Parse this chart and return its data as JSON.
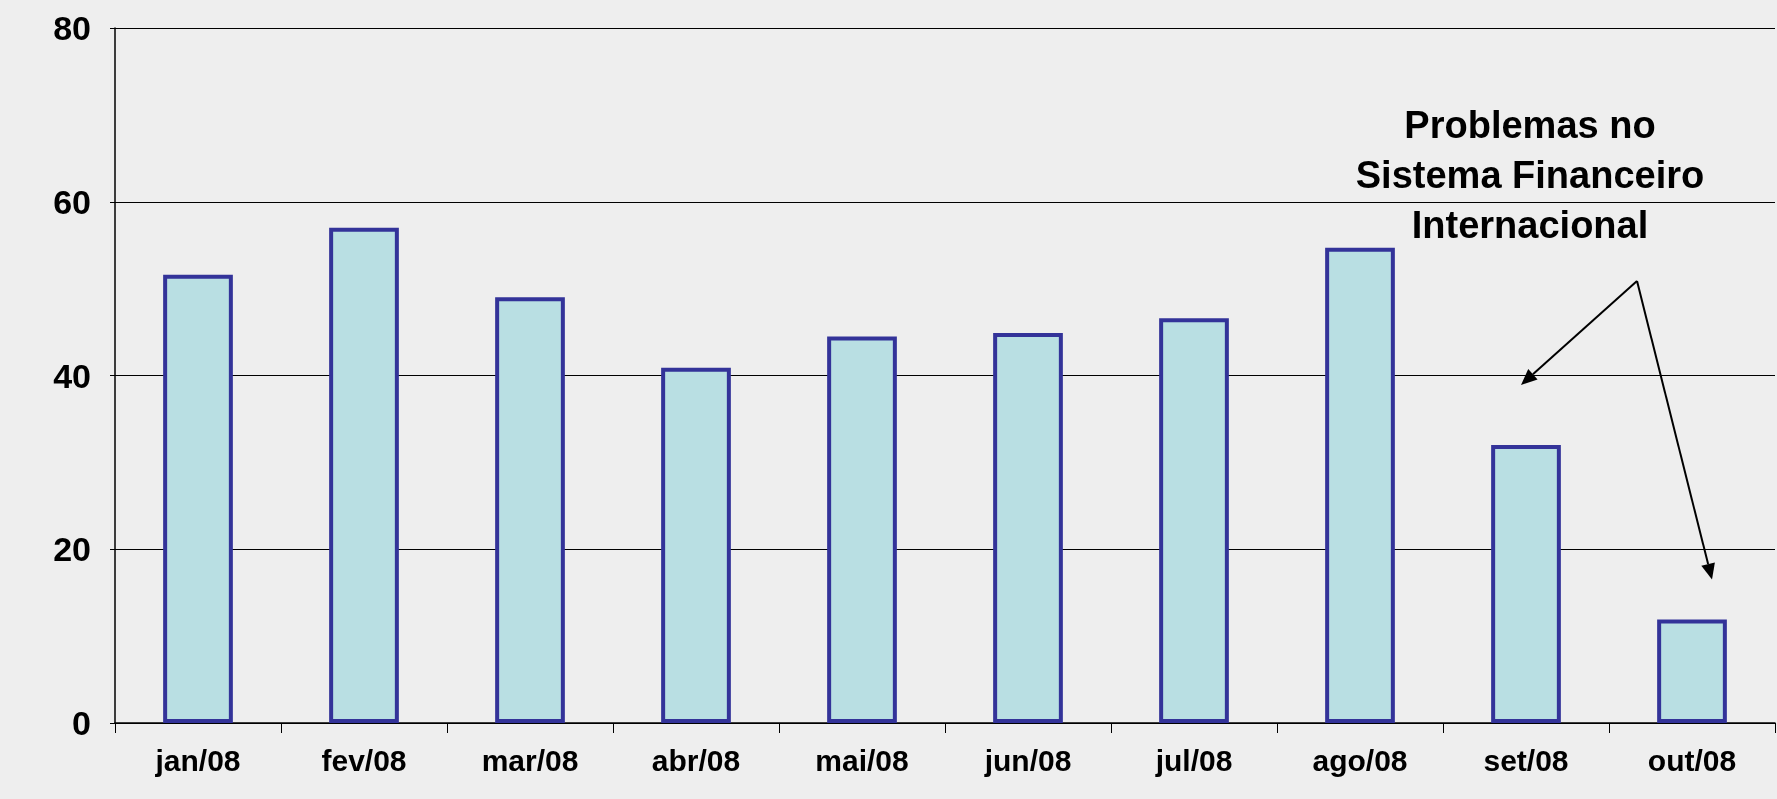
{
  "chart_data": {
    "type": "bar",
    "categories": [
      "jan/08",
      "fev/08",
      "mar/08",
      "abr/08",
      "mai/08",
      "jun/08",
      "jul/08",
      "ago/08",
      "set/08",
      "out/08"
    ],
    "values": [
      51.6,
      57.0,
      49.0,
      40.9,
      44.5,
      44.9,
      46.6,
      54.7,
      32.0,
      11.9
    ],
    "color": "#b9dfe3",
    "ylim": [
      0,
      80
    ],
    "yticks": [
      0,
      20,
      40,
      60,
      80
    ],
    "grid": "y",
    "annotations": [
      "Problemas no\nSistema Financeiro\nInternacional"
    ]
  }
}
